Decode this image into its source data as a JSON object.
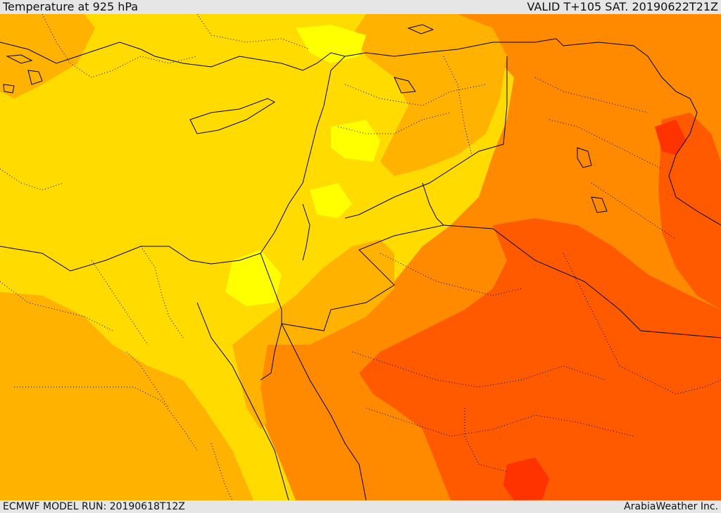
{
  "header": {
    "title": "Temperature at 925 hPa",
    "valid": "VALID T+105 SAT. 20190622T21Z"
  },
  "footer": {
    "model_run": "ECMWF MODEL RUN: 20190618T12Z",
    "credit": "ArabiaWeather Inc."
  },
  "colors": {
    "yellow": "#ffdb00",
    "bright_yellow": "#ffff00",
    "light_orange": "#ffb300",
    "orange": "#ff8a00",
    "dark_orange": "#ff5a00",
    "red_orange": "#ff3300",
    "border_solid": "#000000",
    "border_dotted": "#000000"
  }
}
